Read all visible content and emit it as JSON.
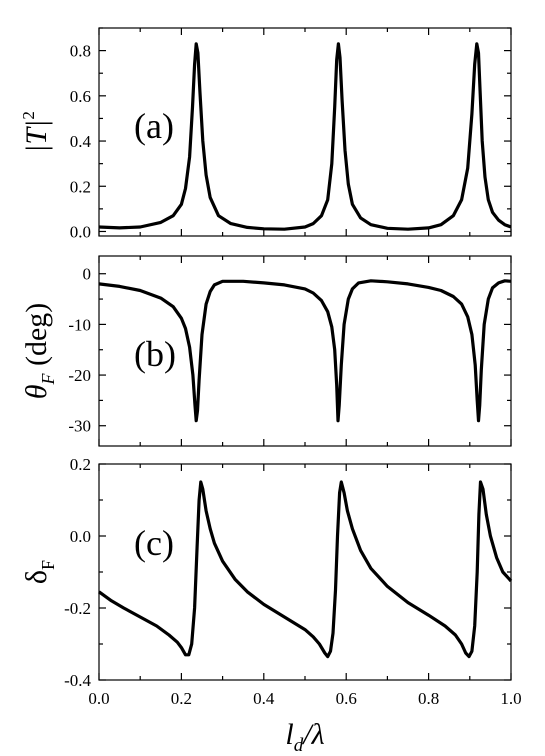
{
  "chart_data": [
    {
      "type": "line",
      "panel_label": "(a)",
      "ylabel": "|T|",
      "ylabel_sup": "2",
      "xlim": [
        0.0,
        1.0
      ],
      "ylim": [
        -0.02,
        0.9
      ],
      "x_ticks": [
        0.0,
        0.2,
        0.4,
        0.6,
        0.8,
        1.0
      ],
      "y_ticks": [
        "0.0",
        "0.2",
        "0.4",
        "0.6",
        "0.8"
      ],
      "series": [
        {
          "x": [
            0.0,
            0.05,
            0.1,
            0.15,
            0.18,
            0.2,
            0.21,
            0.22,
            0.227,
            0.232,
            0.236,
            0.24,
            0.245,
            0.252,
            0.26,
            0.27,
            0.29,
            0.32,
            0.36,
            0.4,
            0.45,
            0.5,
            0.52,
            0.54,
            0.555,
            0.565,
            0.572,
            0.577,
            0.581,
            0.585,
            0.59,
            0.597,
            0.605,
            0.615,
            0.635,
            0.66,
            0.7,
            0.75,
            0.8,
            0.83,
            0.86,
            0.88,
            0.895,
            0.905,
            0.912,
            0.917,
            0.921,
            0.925,
            0.93,
            0.937,
            0.945,
            0.955,
            0.97,
            0.985,
            1.0
          ],
          "y": [
            0.02,
            0.016,
            0.02,
            0.04,
            0.07,
            0.12,
            0.19,
            0.33,
            0.55,
            0.74,
            0.83,
            0.79,
            0.62,
            0.4,
            0.25,
            0.15,
            0.07,
            0.035,
            0.018,
            0.012,
            0.01,
            0.02,
            0.035,
            0.07,
            0.14,
            0.3,
            0.55,
            0.76,
            0.83,
            0.77,
            0.58,
            0.36,
            0.21,
            0.12,
            0.06,
            0.03,
            0.014,
            0.01,
            0.016,
            0.03,
            0.07,
            0.14,
            0.28,
            0.52,
            0.74,
            0.83,
            0.79,
            0.62,
            0.4,
            0.24,
            0.14,
            0.085,
            0.05,
            0.03,
            0.02
          ]
        }
      ]
    },
    {
      "type": "line",
      "panel_label": "(b)",
      "ylabel": "θ",
      "ylabel_sub": "F",
      "ylabel_unit": " (deg)",
      "xlim": [
        0.0,
        1.0
      ],
      "ylim": [
        -34,
        3.5
      ],
      "x_ticks": [
        0.0,
        0.2,
        0.4,
        0.6,
        0.8,
        1.0
      ],
      "y_ticks": [
        "0",
        "-10",
        "-20",
        "-30"
      ],
      "series": [
        {
          "x": [
            0.0,
            0.05,
            0.1,
            0.15,
            0.18,
            0.2,
            0.21,
            0.22,
            0.228,
            0.233,
            0.236,
            0.239,
            0.243,
            0.25,
            0.26,
            0.27,
            0.28,
            0.3,
            0.35,
            0.4,
            0.45,
            0.5,
            0.52,
            0.54,
            0.555,
            0.565,
            0.572,
            0.577,
            0.58,
            0.583,
            0.588,
            0.595,
            0.605,
            0.615,
            0.63,
            0.66,
            0.7,
            0.75,
            0.8,
            0.83,
            0.86,
            0.88,
            0.895,
            0.905,
            0.913,
            0.918,
            0.921,
            0.924,
            0.928,
            0.935,
            0.945,
            0.955,
            0.97,
            0.985,
            1.0
          ],
          "y": [
            -2.0,
            -2.5,
            -3.3,
            -4.8,
            -6.5,
            -8.8,
            -10.8,
            -14.5,
            -20.0,
            -26.0,
            -29.0,
            -27.0,
            -21.0,
            -12.0,
            -6.0,
            -3.5,
            -2.2,
            -1.5,
            -1.5,
            -1.8,
            -2.2,
            -3.0,
            -3.8,
            -5.3,
            -7.5,
            -10.5,
            -15.0,
            -22.0,
            -29.0,
            -26.0,
            -18.0,
            -10.0,
            -5.0,
            -3.0,
            -1.8,
            -1.4,
            -1.6,
            -2.0,
            -2.7,
            -3.3,
            -4.5,
            -6.0,
            -8.5,
            -12.0,
            -18.0,
            -25.0,
            -29.0,
            -26.0,
            -19.0,
            -10.0,
            -5.0,
            -2.8,
            -1.8,
            -1.4,
            -1.5
          ]
        }
      ]
    },
    {
      "type": "line",
      "panel_label": "(c)",
      "ylabel": "δ",
      "ylabel_sub": "F",
      "xlabel": "l",
      "xlabel_sub": "d",
      "xlabel_tail": "/λ",
      "xlim": [
        0.0,
        1.0
      ],
      "ylim": [
        -0.4,
        0.2
      ],
      "x_ticks": [
        "0.0",
        "0.2",
        "0.4",
        "0.6",
        "0.8",
        "1.0"
      ],
      "y_ticks": [
        "0.2",
        "0.0",
        "-0.2",
        "-0.4"
      ],
      "series": [
        {
          "x": [
            0.0,
            0.03,
            0.06,
            0.1,
            0.14,
            0.17,
            0.19,
            0.2,
            0.21,
            0.218,
            0.225,
            0.232,
            0.238,
            0.243,
            0.247,
            0.252,
            0.26,
            0.27,
            0.28,
            0.3,
            0.33,
            0.36,
            0.4,
            0.45,
            0.5,
            0.52,
            0.535,
            0.548,
            0.555,
            0.562,
            0.568,
            0.574,
            0.579,
            0.584,
            0.588,
            0.595,
            0.603,
            0.615,
            0.635,
            0.66,
            0.7,
            0.75,
            0.8,
            0.84,
            0.865,
            0.88,
            0.89,
            0.898,
            0.905,
            0.912,
            0.918,
            0.922,
            0.926,
            0.932,
            0.94,
            0.95,
            0.965,
            0.98,
            1.0
          ],
          "y": [
            -0.155,
            -0.18,
            -0.2,
            -0.225,
            -0.25,
            -0.275,
            -0.295,
            -0.31,
            -0.33,
            -0.33,
            -0.3,
            -0.2,
            -0.03,
            0.1,
            0.15,
            0.13,
            0.07,
            0.02,
            -0.02,
            -0.07,
            -0.12,
            -0.155,
            -0.19,
            -0.225,
            -0.26,
            -0.28,
            -0.3,
            -0.325,
            -0.335,
            -0.32,
            -0.27,
            -0.15,
            0.0,
            0.12,
            0.15,
            0.12,
            0.07,
            0.02,
            -0.04,
            -0.09,
            -0.14,
            -0.185,
            -0.22,
            -0.25,
            -0.275,
            -0.3,
            -0.325,
            -0.335,
            -0.32,
            -0.25,
            -0.1,
            0.06,
            0.15,
            0.13,
            0.06,
            0.0,
            -0.06,
            -0.1,
            -0.125
          ]
        }
      ]
    }
  ]
}
